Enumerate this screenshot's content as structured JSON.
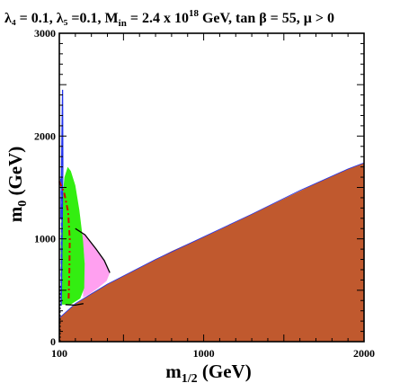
{
  "chart_data": {
    "type": "area",
    "title": "λ₄ = 0.1, λ₅ =0.1, M",
    "title_sub": "in",
    "title_mid": " = 2.4 x 10",
    "title_sup": "18",
    "title_end": " GeV, tan β = 55,  μ > 0",
    "xlabel": "m",
    "xlabel_sub": "1/2",
    "xlabel_unit": " (GeV)",
    "ylabel": "m",
    "ylabel_sub": "0",
    "ylabel_unit": " (GeV)",
    "xlim": [
      100,
      2000
    ],
    "ylim": [
      0,
      3000
    ],
    "x_ticks": [
      {
        "value": 100,
        "label": "100"
      },
      {
        "value": 1000,
        "label": "1000"
      },
      {
        "value": 2000,
        "label": "2000"
      }
    ],
    "y_ticks": [
      {
        "value": 0,
        "label": "0"
      },
      {
        "value": 1000,
        "label": "1000"
      },
      {
        "value": 2000,
        "label": "2000"
      },
      {
        "value": 3000,
        "label": "3000"
      }
    ],
    "colors": {
      "stau_lsp": "#c0592e",
      "g_minus_2": "#33ee11",
      "higgs_pink": "#ffa0f0",
      "relic_blue": "#2233ee",
      "chargino_black": "#000000",
      "higgs_red": "#cc1100"
    },
    "regions": [
      {
        "id": "stau-lsp",
        "points": [
          [
            100,
            0
          ],
          [
            2000,
            0
          ],
          [
            2000,
            1740
          ],
          [
            1900,
            1680
          ],
          [
            1700,
            1540
          ],
          [
            1500,
            1390
          ],
          [
            1300,
            1240
          ],
          [
            1100,
            1090
          ],
          [
            1000,
            1020
          ],
          [
            900,
            950
          ],
          [
            800,
            880
          ],
          [
            700,
            800
          ],
          [
            600,
            720
          ],
          [
            500,
            640
          ],
          [
            400,
            560
          ],
          [
            300,
            470
          ],
          [
            200,
            370
          ],
          [
            100,
            230
          ]
        ]
      },
      {
        "id": "g-2-band",
        "points": [
          [
            112,
            420
          ],
          [
            108,
            900
          ],
          [
            114,
            1300
          ],
          [
            132,
            1600
          ],
          [
            152,
            1700
          ],
          [
            172,
            1660
          ],
          [
            200,
            1520
          ],
          [
            225,
            1280
          ],
          [
            248,
            980
          ],
          [
            258,
            760
          ],
          [
            255,
            520
          ],
          [
            230,
            420
          ],
          [
            170,
            360
          ],
          [
            112,
            360
          ]
        ]
      },
      {
        "id": "higgs-excluded",
        "points": [
          [
            200,
            1100
          ],
          [
            250,
            1050
          ],
          [
            300,
            960
          ],
          [
            340,
            870
          ],
          [
            380,
            780
          ],
          [
            415,
            670
          ],
          [
            395,
            590
          ],
          [
            340,
            520
          ],
          [
            280,
            455
          ],
          [
            248,
            430
          ],
          [
            250,
            640
          ],
          [
            258,
            780
          ],
          [
            245,
            1000
          ],
          [
            225,
            1100
          ]
        ]
      }
    ],
    "lines": [
      {
        "id": "relic-density-strip",
        "points": [
          [
            110,
            1200
          ],
          [
            120,
            2450
          ],
          [
            122,
            1700
          ],
          [
            116,
            900
          ],
          [
            114,
            600
          ],
          [
            112,
            350
          ]
        ]
      },
      {
        "id": "stau-boundary",
        "points": [
          [
            100,
            230
          ],
          [
            200,
            370
          ],
          [
            400,
            560
          ],
          [
            700,
            800
          ],
          [
            1000,
            1020
          ],
          [
            1300,
            1240
          ],
          [
            1600,
            1470
          ],
          [
            1900,
            1680
          ],
          [
            2000,
            1740
          ]
        ]
      },
      {
        "id": "chargino-limit",
        "points": [
          [
            104,
            0
          ],
          [
            104,
            550
          ]
        ]
      },
      {
        "id": "higgs-black-curve",
        "points": [
          [
            200,
            1100
          ],
          [
            260,
            1040
          ],
          [
            330,
            900
          ],
          [
            380,
            790
          ],
          [
            415,
            670
          ]
        ]
      },
      {
        "id": "chargino-dash",
        "points": [
          [
            112,
            450
          ],
          [
            115,
            1100
          ],
          [
            112,
            1500
          ],
          [
            110,
            1600
          ]
        ]
      },
      {
        "id": "black-bottom",
        "points": [
          [
            138,
            360
          ],
          [
            200,
            355
          ],
          [
            250,
            370
          ]
        ]
      },
      {
        "id": "higgs-red-dashdot",
        "points": [
          [
            100,
            1560
          ],
          [
            130,
            1450
          ],
          [
            155,
            1260
          ],
          [
            165,
            1000
          ],
          [
            163,
            700
          ],
          [
            158,
            400
          ]
        ]
      }
    ]
  }
}
